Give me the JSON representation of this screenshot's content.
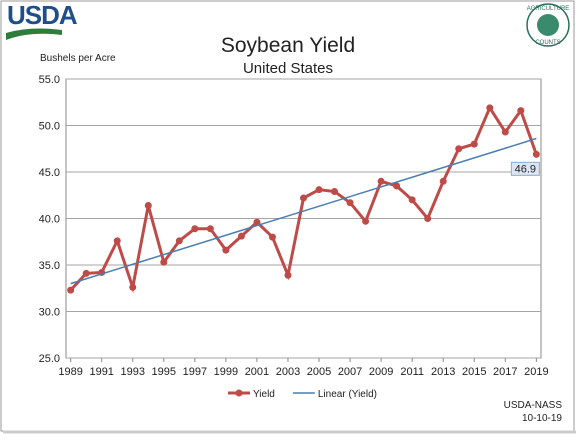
{
  "header": {
    "logo": "USDA",
    "seal_top": "AGRICULTURE",
    "seal_bottom": "COUNTS"
  },
  "chart_data": {
    "type": "line",
    "title": "Soybean Yield",
    "subtitle": "United States",
    "y_label": "Bushels per Acre",
    "x": [
      1989,
      1990,
      1991,
      1992,
      1993,
      1994,
      1995,
      1996,
      1997,
      1998,
      1999,
      2000,
      2001,
      2002,
      2003,
      2004,
      2005,
      2006,
      2007,
      2008,
      2009,
      2010,
      2011,
      2012,
      2013,
      2014,
      2015,
      2016,
      2017,
      2018,
      2019
    ],
    "series": [
      {
        "name": "Yield",
        "color": "#be4b48",
        "values": [
          32.3,
          34.1,
          34.2,
          37.6,
          32.6,
          41.4,
          35.3,
          37.6,
          38.9,
          38.9,
          36.6,
          38.1,
          39.6,
          38.0,
          33.9,
          42.2,
          43.1,
          42.9,
          41.7,
          39.7,
          44.0,
          43.5,
          42.0,
          40.0,
          44.0,
          47.5,
          48.0,
          51.9,
          49.3,
          51.6,
          46.9
        ],
        "value_labels": [
          null,
          null,
          null,
          null,
          null,
          null,
          null,
          null,
          null,
          null,
          null,
          null,
          null,
          null,
          null,
          null,
          null,
          null,
          null,
          null,
          null,
          null,
          null,
          null,
          null,
          null,
          null,
          null,
          null,
          null,
          "46.9"
        ]
      },
      {
        "name": "Linear (Yield)",
        "color": "#4a7eb0",
        "x": [
          1989,
          2019
        ],
        "values": [
          33.0,
          48.6
        ]
      }
    ],
    "xlim": [
      1988.7,
      2019.3
    ],
    "xticks": [
      1989,
      1991,
      1993,
      1995,
      1997,
      1999,
      2001,
      2003,
      2005,
      2007,
      2009,
      2011,
      2013,
      2015,
      2017,
      2019
    ],
    "ylim": [
      25,
      55
    ],
    "yticks": [
      {
        "value": 25,
        "label": "25.0"
      },
      {
        "value": 30,
        "label": "30.0"
      },
      {
        "value": 35,
        "label": "35.0"
      },
      {
        "value": 40,
        "label": "40.0"
      },
      {
        "value": 45,
        "label": "45.0"
      },
      {
        "value": 50,
        "label": "50.0"
      },
      {
        "value": 55,
        "label": "55.0"
      }
    ],
    "grid": true,
    "legend": "bottom"
  },
  "footer": {
    "source": "USDA-NASS",
    "date": "10-10-19"
  }
}
